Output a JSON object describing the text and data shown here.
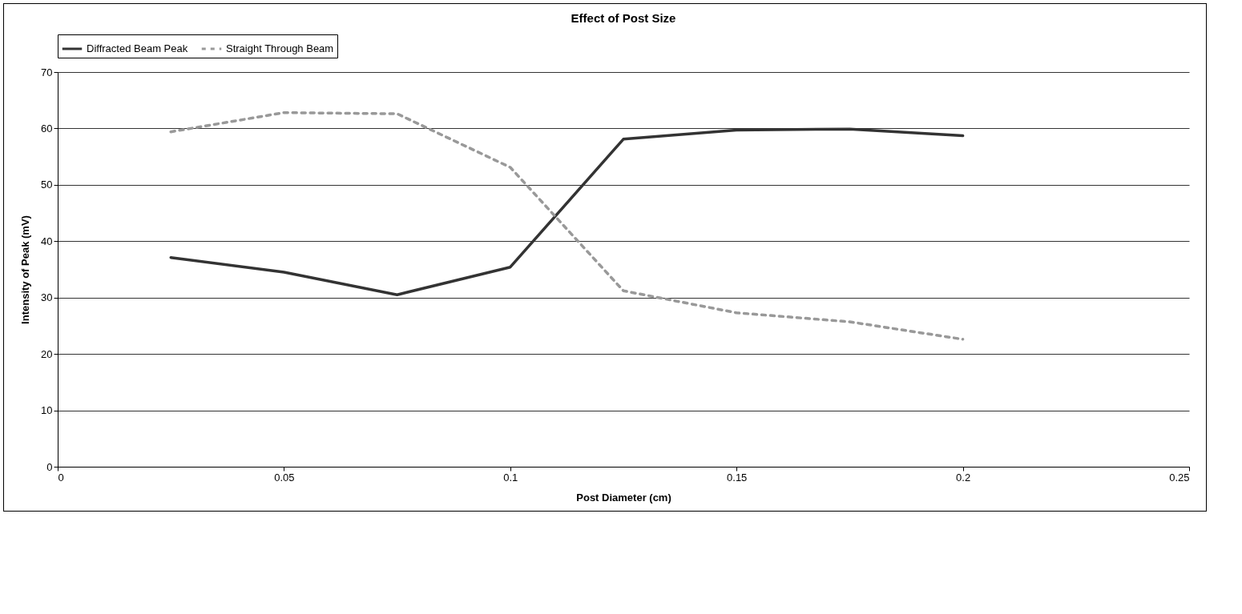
{
  "chart_data": {
    "type": "line",
    "title": "Effect of Post Size",
    "xlabel": "Post Diameter (cm)",
    "ylabel": "Intensity of Peak (mV)",
    "x": [
      0.025,
      0.05,
      0.075,
      0.1,
      0.125,
      0.15,
      0.175,
      0.2
    ],
    "series": [
      {
        "name": "Diffracted Beam Peak",
        "color": "#333333",
        "line_style": "solid",
        "values": [
          37.1,
          34.5,
          30.5,
          35.4,
          58.1,
          59.7,
          59.9,
          58.7
        ]
      },
      {
        "name": "Straight Through Beam",
        "color": "#999999",
        "line_style": "dashed",
        "values": [
          59.4,
          62.8,
          62.6,
          53.1,
          31.2,
          27.3,
          25.7,
          22.6
        ]
      }
    ],
    "xlim": [
      0,
      0.25
    ],
    "xticks": [
      0,
      0.05,
      0.1,
      0.15,
      0.2,
      0.25
    ],
    "ylim": [
      0,
      70
    ],
    "yticks": [
      0,
      10,
      20,
      30,
      40,
      50,
      60,
      70
    ],
    "grid": "y",
    "legend": "top",
    "marker": "none"
  }
}
